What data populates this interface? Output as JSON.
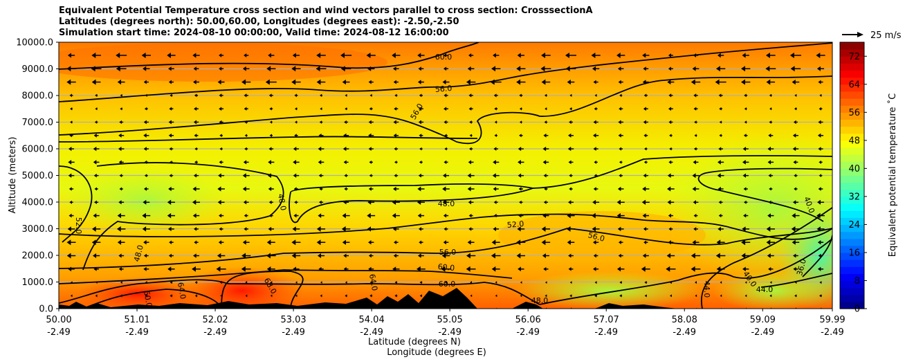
{
  "chart_data": {
    "type": "heatmap",
    "title_lines": [
      "Equivalent Potential Temperature cross section and wind vectors parallel to cross section: CrosssectionA",
      "Latitudes (degrees north): 50.00,60.00, Longitudes (degrees east): -2.50,-2.50",
      "Simulation start time: 2024-08-10 00:00:00, Valid time: 2024-08-12 16:00:00"
    ],
    "xlabel_lat": "Latitude (degrees N)",
    "xlabel_lon": "Longitude (degrees E)",
    "ylabel": "Altitude (meters)",
    "colorbar_label": "Equivalent potential temperature ˚C",
    "quiver_key_label": "25 m/s",
    "x_ticks_lat": [
      "50.00",
      "51.01",
      "52.02",
      "53.03",
      "54.04",
      "55.05",
      "56.06",
      "57.07",
      "58.08",
      "59.09",
      "59.99"
    ],
    "x_ticks_lon": [
      "-2.49",
      "-2.49",
      "-2.49",
      "-2.49",
      "-2.49",
      "-2.49",
      "-2.49",
      "-2.49",
      "-2.49",
      "-2.49",
      "-2.49"
    ],
    "y_ticks": [
      "0.0",
      "1000.0",
      "2000.0",
      "3000.0",
      "4000.0",
      "5000.0",
      "6000.0",
      "7000.0",
      "8000.0",
      "9000.0",
      "10000.0"
    ],
    "ylim": [
      0,
      10000
    ],
    "xlim": [
      50.0,
      59.99
    ],
    "colorbar_ticks": [
      "0",
      "8",
      "16",
      "24",
      "32",
      "40",
      "48",
      "56",
      "64",
      "72"
    ],
    "colorbar_range": [
      0,
      76
    ],
    "grid": "horizontal",
    "colormap": "jet",
    "contour_labels": [
      "60.0",
      "56.0",
      "56.0",
      "48.0",
      "48.0",
      "52.0",
      "52.0",
      "48.0",
      "56.0",
      "56.0",
      "60.0",
      "60.0",
      "64.0",
      "68.0",
      "60.0",
      "64.0",
      "48.0",
      "44.0",
      "40.0",
      "44.0",
      "36.0",
      "40.0"
    ]
  }
}
